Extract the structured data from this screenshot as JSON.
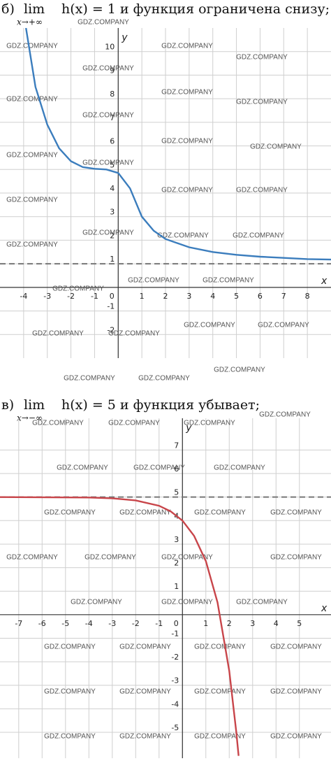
{
  "watermark": "GDZ.COMPANY",
  "chart_data": [
    {
      "type": "line",
      "title_prefix": "б)",
      "title_lim": "lim",
      "title_sub": "x→+∞",
      "title": "h(x) = 1 и функция ограничена снизу;",
      "x_label": "x",
      "y_label": "y",
      "xlim": [
        -5,
        9
      ],
      "ylim": [
        -3,
        11
      ],
      "xticks": [
        -4,
        -3,
        -2,
        -1,
        0,
        1,
        2,
        3,
        4,
        5,
        6,
        7,
        8
      ],
      "yticks": [
        -2,
        -1,
        1,
        2,
        3,
        4,
        5,
        6,
        7,
        8,
        9,
        10
      ],
      "grid": true,
      "asymptote": 1,
      "x": [
        -3.9,
        -3.5,
        -3,
        -2.5,
        -2,
        -1.5,
        -1,
        -0.5,
        0,
        0.5,
        1,
        1.5,
        2,
        3,
        4,
        5,
        6,
        7,
        8,
        9
      ],
      "series": [
        {
          "color": "#3b7dbd",
          "values": [
            11,
            8.5,
            6.9,
            5.9,
            5.35,
            5.1,
            5.03,
            5.0,
            4.85,
            4.2,
            3,
            2.4,
            2.05,
            1.7,
            1.5,
            1.38,
            1.3,
            1.25,
            1.2,
            1.18
          ]
        }
      ]
    },
    {
      "type": "line",
      "title_prefix": "в)",
      "title_lim": "lim",
      "title_sub": "x→−∞",
      "title": "h(x) = 5 и функция убывает;",
      "x_label": "x",
      "y_label": "y",
      "xlim": [
        -7.8,
        6.35
      ],
      "ylim": [
        -6.1,
        8.35
      ],
      "xticks": [
        -7,
        -6,
        -5,
        -4,
        -3,
        -2,
        -1,
        0,
        1,
        2,
        3,
        4,
        5
      ],
      "yticks": [
        -5,
        -4,
        -3,
        -2,
        -1,
        1,
        2,
        3,
        4,
        5,
        6,
        7
      ],
      "grid": true,
      "asymptote": 5,
      "x": [
        -7.8,
        -4,
        -3,
        -2,
        -1,
        -0.5,
        0,
        0.5,
        1,
        1.5,
        2,
        2.3,
        2.4
      ],
      "series": [
        {
          "color": "#c8454a",
          "values": [
            5,
            4.98,
            4.95,
            4.86,
            4.63,
            4.39,
            4,
            3.35,
            2.28,
            0.52,
            -2.39,
            -4.97,
            -6.0
          ]
        }
      ]
    }
  ]
}
